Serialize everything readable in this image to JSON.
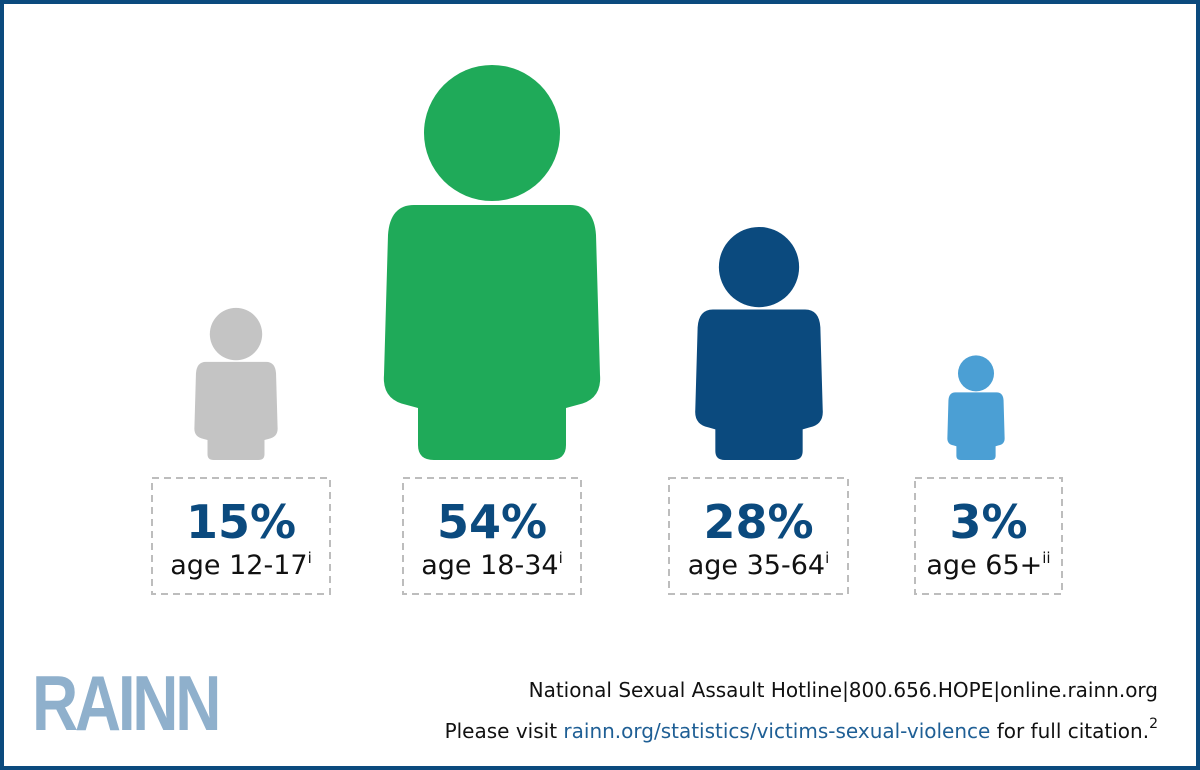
{
  "groups": [
    {
      "percent": "15%",
      "age": "age 12-17",
      "note": "i",
      "color": "#c4c4c4"
    },
    {
      "percent": "54%",
      "age": "age 18-34",
      "note": "i",
      "color": "#1faa59"
    },
    {
      "percent": "28%",
      "age": "age 35-64",
      "note": "i",
      "color": "#0b4a7e"
    },
    {
      "percent": "3%",
      "age": "age 65+",
      "note": "ii",
      "color": "#4b9fd4"
    }
  ],
  "footer": {
    "logo": "RAINN",
    "hotline": "National Sexual Assault Hotline|800.656.HOPE|online.rainn.org",
    "citation": {
      "prefix": "Please visit",
      "link": "rainn.org/statistics/victims-sexual-violence",
      "suffix": "for full citation.",
      "note": "2"
    }
  }
}
